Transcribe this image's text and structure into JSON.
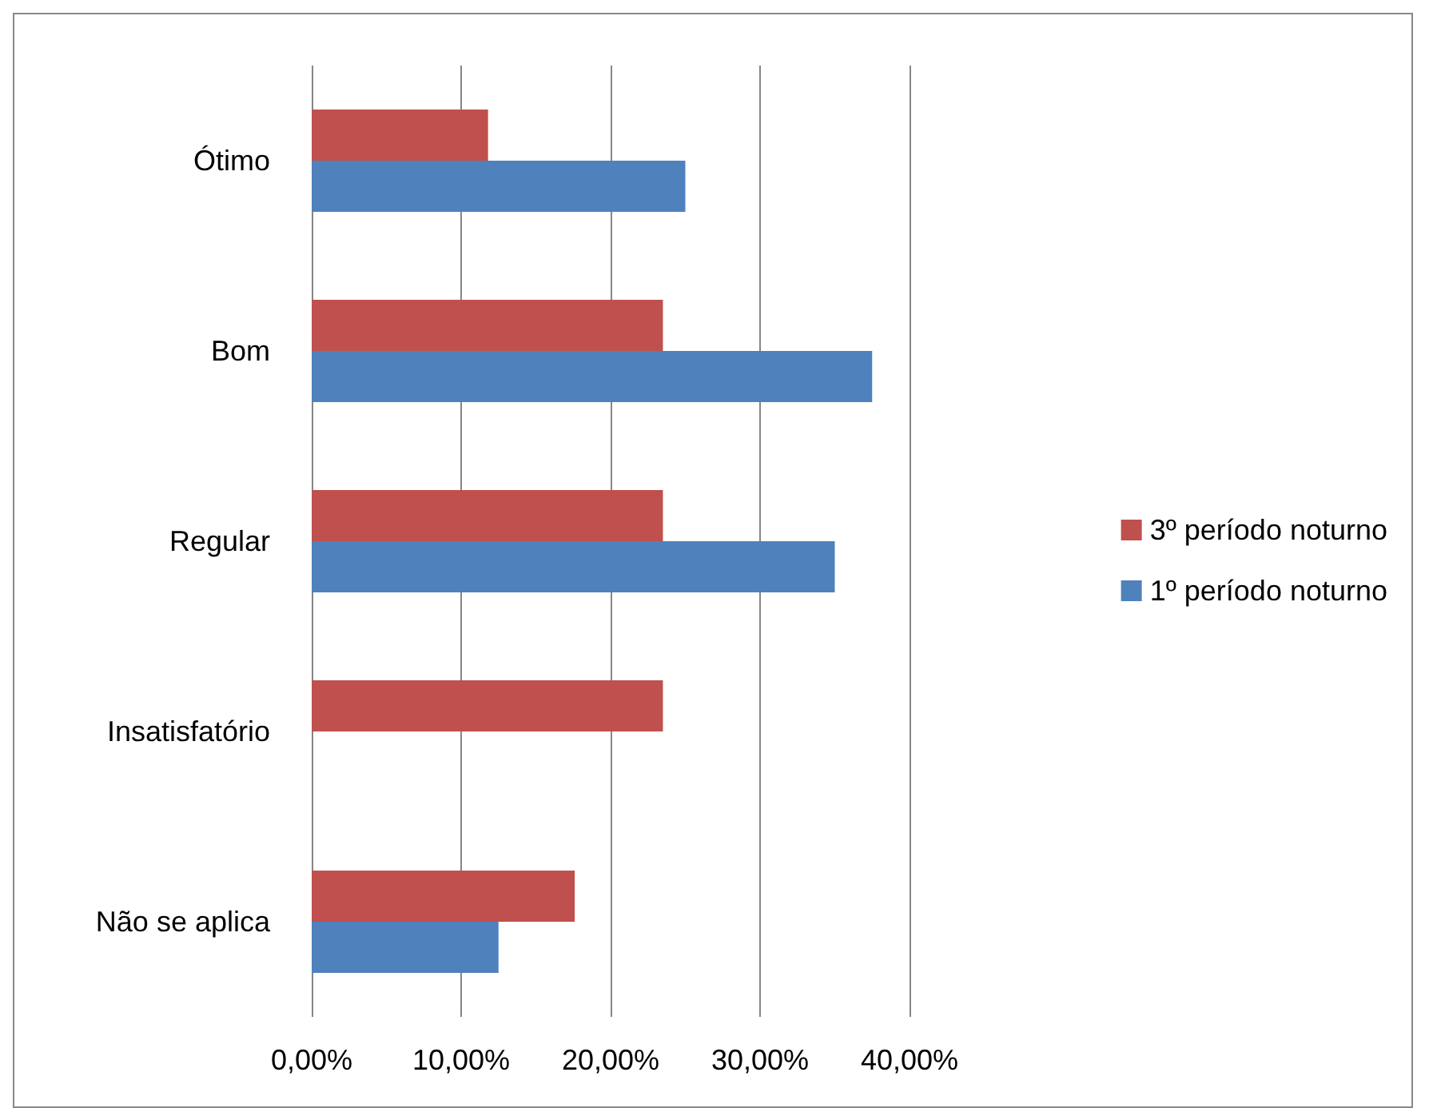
{
  "chart_data": {
    "type": "bar",
    "orientation": "horizontal",
    "categories": [
      "Ótimo",
      "Bom",
      "Regular",
      "Insatisfatório",
      "Não se aplica"
    ],
    "series": [
      {
        "name": "3º período noturno",
        "color": "#c0504d",
        "values": [
          11.8,
          23.5,
          23.5,
          23.5,
          17.6
        ]
      },
      {
        "name": "1º período noturno",
        "color": "#4f81bd",
        "values": [
          25,
          37.5,
          35,
          0,
          12.5
        ]
      }
    ],
    "xlim": [
      0,
      40
    ],
    "xticks": [
      {
        "value": 0,
        "label": "0,00%"
      },
      {
        "value": 10,
        "label": "10,00%"
      },
      {
        "value": 20,
        "label": "20,00%"
      },
      {
        "value": 30,
        "label": "30,00%"
      },
      {
        "value": 40,
        "label": "40,00%"
      }
    ],
    "grid": "x",
    "legend": "right"
  }
}
